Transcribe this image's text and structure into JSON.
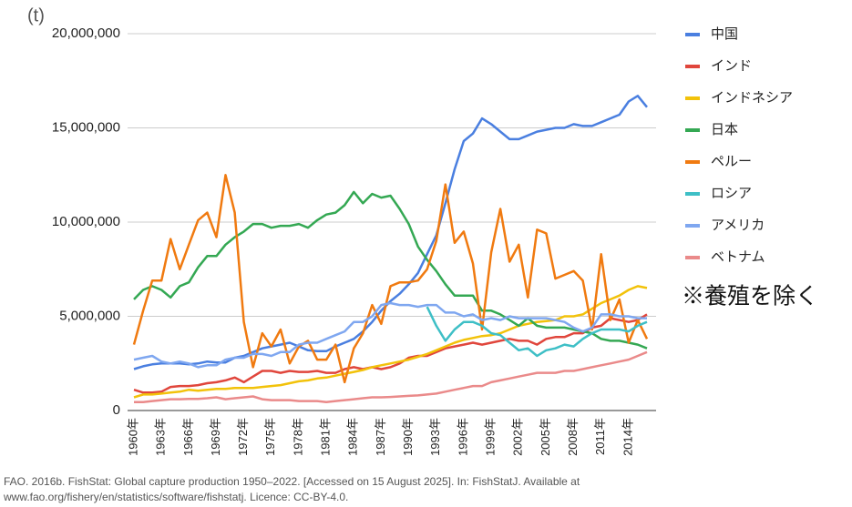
{
  "chart_data": {
    "type": "line",
    "y_unit": "(t)",
    "annotation": "※養殖を除く",
    "source": [
      "FAO. 2016b. FishStat: Global capture production 1950–2022. [Accessed on 15 August 2025]. In: FishStatJ. Available at",
      "www.fao.org/fishery/en/statistics/software/fishstatj. Licence: CC-BY-4.0."
    ],
    "categories": [
      "1960年",
      null,
      null,
      "1963年",
      null,
      null,
      "1966年",
      null,
      null,
      "1969年",
      null,
      null,
      "1972年",
      null,
      null,
      "1975年",
      null,
      null,
      "1978年",
      null,
      null,
      "1981年",
      null,
      null,
      "1984年",
      null,
      null,
      "1987年",
      null,
      null,
      "1990年",
      null,
      null,
      "1993年",
      null,
      null,
      "1996年",
      null,
      null,
      "1999年",
      null,
      null,
      "2002年",
      null,
      null,
      "2005年",
      null,
      null,
      "2008年",
      null,
      null,
      "2011年",
      null,
      null,
      "2014年",
      null,
      null
    ],
    "ylim": [
      0,
      20000000
    ],
    "yticks": [
      0,
      {
        "value": 5000000,
        "label": "5,000,000"
      },
      {
        "value": 10000000,
        "label": "10,000,000"
      },
      {
        "value": 15000000,
        "label": "15,000,000"
      },
      {
        "value": 20000000,
        "label": "20,000,000"
      }
    ],
    "grid": true,
    "legend": "right",
    "series": [
      {
        "name": "中国",
        "color": "#4a7fe0",
        "values": [
          2200000,
          2350000,
          2450000,
          2500000,
          2500000,
          2500000,
          2450000,
          2500000,
          2600000,
          2550000,
          2550000,
          2800000,
          2900000,
          3100000,
          3300000,
          3400000,
          3500000,
          3600000,
          3400000,
          3200000,
          3150000,
          3150000,
          3400000,
          3600000,
          3800000,
          4200000,
          4700000,
          5300000,
          5800000,
          6200000,
          6700000,
          7300000,
          8300000,
          9300000,
          11000000,
          12800000,
          14300000,
          14700000,
          15500000,
          15200000,
          14800000,
          14400000,
          14400000,
          14600000,
          14800000,
          14900000,
          15000000,
          15000000,
          15200000,
          15100000,
          15100000,
          15300000,
          15500000,
          15700000,
          16400000,
          16700000,
          16100000
        ]
      },
      {
        "name": "インド",
        "color": "#e0463c",
        "values": [
          1100000,
          950000,
          950000,
          1000000,
          1250000,
          1300000,
          1300000,
          1350000,
          1450000,
          1500000,
          1600000,
          1750000,
          1500000,
          1800000,
          2100000,
          2100000,
          2000000,
          2100000,
          2050000,
          2050000,
          2100000,
          2000000,
          2000000,
          2200000,
          2300000,
          2200000,
          2300000,
          2200000,
          2300000,
          2500000,
          2800000,
          2900000,
          2900000,
          3100000,
          3300000,
          3400000,
          3500000,
          3600000,
          3500000,
          3600000,
          3700000,
          3800000,
          3700000,
          3700000,
          3500000,
          3800000,
          3900000,
          3900000,
          4100000,
          4100000,
          4400000,
          4500000,
          4900000,
          4800000,
          4700000,
          4800000,
          5100000
        ]
      },
      {
        "name": "インドネシア",
        "color": "#f2c20a",
        "values": [
          700000,
          850000,
          850000,
          900000,
          950000,
          1000000,
          1100000,
          1050000,
          1100000,
          1150000,
          1150000,
          1200000,
          1200000,
          1200000,
          1250000,
          1300000,
          1350000,
          1450000,
          1550000,
          1600000,
          1700000,
          1750000,
          1850000,
          1950000,
          2050000,
          2150000,
          2300000,
          2400000,
          2500000,
          2600000,
          2700000,
          2850000,
          3000000,
          3200000,
          3400000,
          3600000,
          3750000,
          3850000,
          3950000,
          4000000,
          4100000,
          4300000,
          4500000,
          4600000,
          4700000,
          4750000,
          4800000,
          5000000,
          5000000,
          5100000,
          5400000,
          5700000,
          5900000,
          6100000,
          6400000,
          6600000,
          6500000
        ]
      },
      {
        "name": "日本",
        "color": "#34a853",
        "values": [
          5900000,
          6400000,
          6600000,
          6400000,
          6000000,
          6600000,
          6800000,
          7600000,
          8200000,
          8200000,
          8800000,
          9200000,
          9500000,
          9900000,
          9900000,
          9700000,
          9800000,
          9800000,
          9900000,
          9700000,
          10100000,
          10400000,
          10500000,
          10900000,
          11600000,
          11000000,
          11500000,
          11300000,
          11400000,
          10700000,
          9900000,
          8700000,
          8000000,
          7400000,
          6700000,
          6100000,
          6100000,
          6100000,
          5300000,
          5300000,
          5100000,
          4800000,
          4500000,
          4900000,
          4500000,
          4400000,
          4400000,
          4400000,
          4300000,
          4200000,
          4100000,
          3800000,
          3700000,
          3700000,
          3600000,
          3500000,
          3300000
        ]
      },
      {
        "name": "ペルー",
        "color": "#f07a10",
        "values": [
          3500000,
          5300000,
          6900000,
          6900000,
          9100000,
          7500000,
          8800000,
          10100000,
          10500000,
          9200000,
          12500000,
          10500000,
          4700000,
          2300000,
          4100000,
          3400000,
          4300000,
          2500000,
          3400000,
          3700000,
          2700000,
          2700000,
          3500000,
          1500000,
          3300000,
          4100000,
          5600000,
          4600000,
          6600000,
          6800000,
          6800000,
          6900000,
          7500000,
          9000000,
          12000000,
          8900000,
          9500000,
          7800000,
          4300000,
          8400000,
          10700000,
          7900000,
          8800000,
          6000000,
          9600000,
          9400000,
          7000000,
          7200000,
          7400000,
          6900000,
          4300000,
          8300000,
          4800000,
          5900000,
          3600000,
          4800000,
          3800000
        ]
      },
      {
        "name": "ロシア",
        "color": "#3ebfc6",
        "values": [
          null,
          null,
          null,
          null,
          null,
          null,
          null,
          null,
          null,
          null,
          null,
          null,
          null,
          null,
          null,
          null,
          null,
          null,
          null,
          null,
          null,
          null,
          null,
          null,
          null,
          null,
          null,
          null,
          null,
          null,
          null,
          null,
          5500000,
          4500000,
          3700000,
          4300000,
          4700000,
          4700000,
          4500000,
          4100000,
          4000000,
          3600000,
          3200000,
          3300000,
          2900000,
          3200000,
          3300000,
          3500000,
          3400000,
          3800000,
          4100000,
          4300000,
          4300000,
          4300000,
          4200000,
          4500000,
          4700000
        ]
      },
      {
        "name": "アメリカ",
        "color": "#7fa7f0",
        "values": [
          2700000,
          2800000,
          2900000,
          2600000,
          2500000,
          2600000,
          2500000,
          2300000,
          2400000,
          2400000,
          2700000,
          2800000,
          2800000,
          3000000,
          3000000,
          2900000,
          3100000,
          3100000,
          3500000,
          3600000,
          3600000,
          3800000,
          4000000,
          4200000,
          4700000,
          4700000,
          5000000,
          5600000,
          5700000,
          5600000,
          5600000,
          5500000,
          5600000,
          5600000,
          5200000,
          5200000,
          5000000,
          5100000,
          4800000,
          4900000,
          4800000,
          5000000,
          4900000,
          4900000,
          4900000,
          4900000,
          4800000,
          4700000,
          4400000,
          4200000,
          4400000,
          5100000,
          5100000,
          5000000,
          5000000,
          4900000,
          4900000
        ]
      },
      {
        "name": "ベトナム",
        "color": "#ea8a8a",
        "values": [
          450000,
          450000,
          500000,
          550000,
          600000,
          600000,
          620000,
          620000,
          650000,
          700000,
          600000,
          650000,
          700000,
          750000,
          600000,
          550000,
          550000,
          550000,
          500000,
          500000,
          500000,
          450000,
          500000,
          550000,
          600000,
          650000,
          700000,
          700000,
          720000,
          750000,
          780000,
          800000,
          850000,
          900000,
          1000000,
          1100000,
          1200000,
          1300000,
          1300000,
          1500000,
          1600000,
          1700000,
          1800000,
          1900000,
          2000000,
          2000000,
          2000000,
          2100000,
          2100000,
          2200000,
          2300000,
          2400000,
          2500000,
          2600000,
          2700000,
          2900000,
          3100000
        ]
      }
    ]
  }
}
